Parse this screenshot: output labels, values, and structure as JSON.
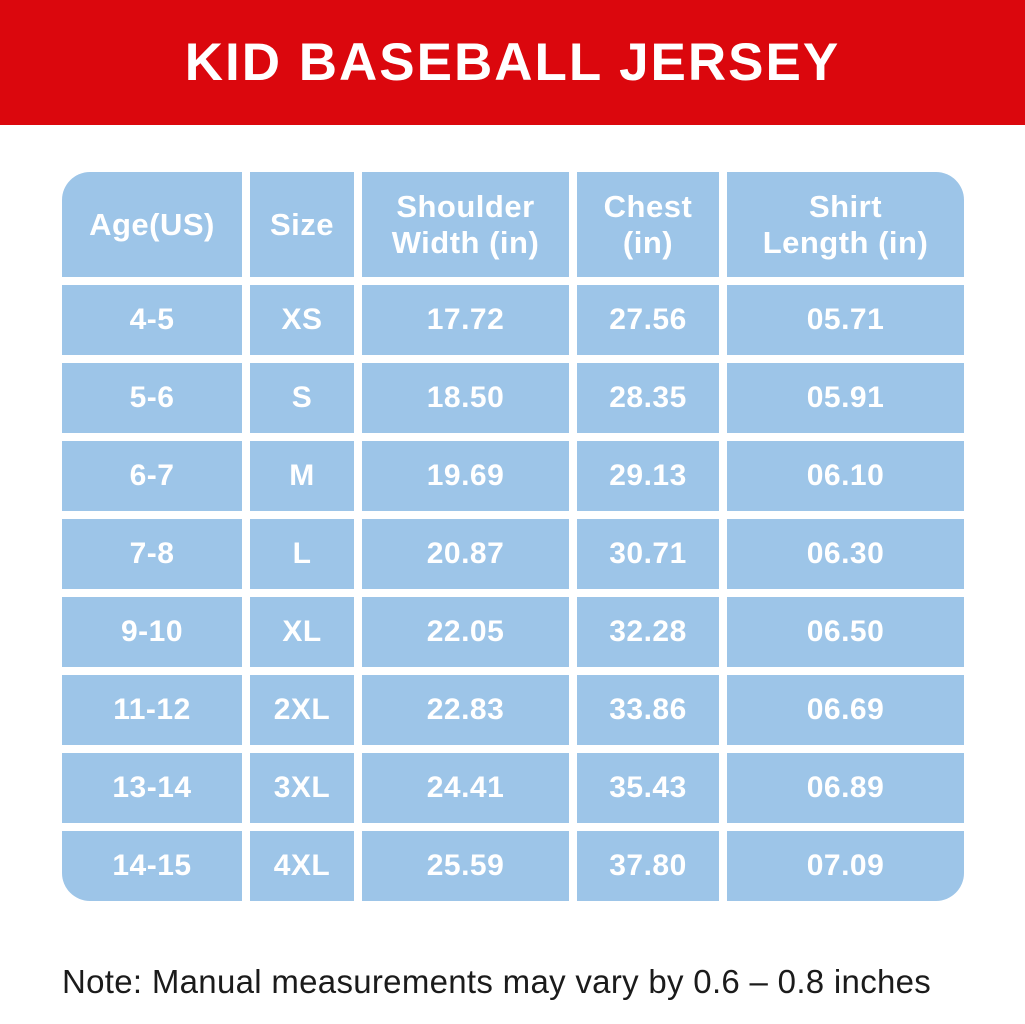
{
  "banner": {
    "title": "KID BASEBALL JERSEY"
  },
  "colors": {
    "banner_red": "#DB070D",
    "cell_blue": "#9DC5E8",
    "table_text": "#FFFFFF",
    "note_text": "#1B1B1B"
  },
  "table": {
    "columns": [
      "Age(US)",
      "Size",
      "Shoulder\nWidth (in)",
      "Chest\n(in)",
      "Shirt\nLength (in)"
    ],
    "rows": [
      [
        "4-5",
        "XS",
        "17.72",
        "27.56",
        "05.71"
      ],
      [
        "5-6",
        "S",
        "18.50",
        "28.35",
        "05.91"
      ],
      [
        "6-7",
        "M",
        "19.69",
        "29.13",
        "06.10"
      ],
      [
        "7-8",
        "L",
        "20.87",
        "30.71",
        "06.30"
      ],
      [
        "9-10",
        "XL",
        "22.05",
        "32.28",
        "06.50"
      ],
      [
        "11-12",
        "2XL",
        "22.83",
        "33.86",
        "06.69"
      ],
      [
        "13-14",
        "3XL",
        "24.41",
        "35.43",
        "06.89"
      ],
      [
        "14-15",
        "4XL",
        "25.59",
        "37.80",
        "07.09"
      ]
    ]
  },
  "note": "Note: Manual measurements may vary by 0.6 – 0.8 inches"
}
